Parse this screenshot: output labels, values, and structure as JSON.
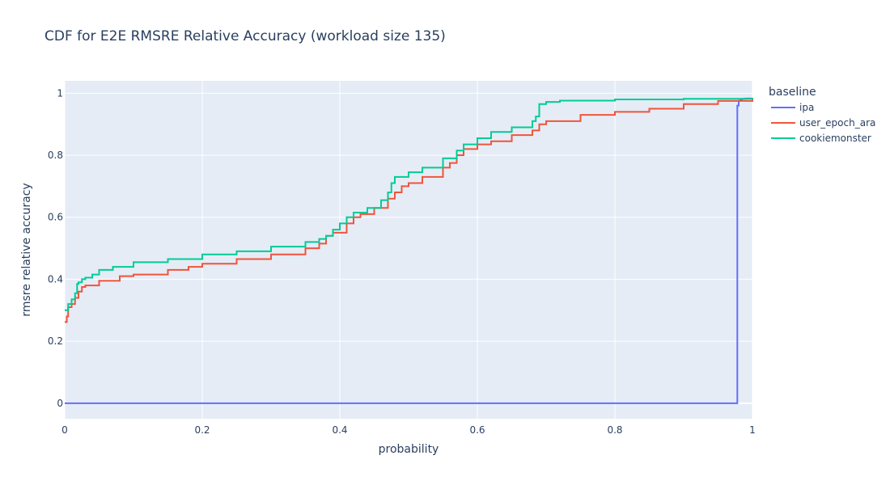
{
  "chart_data": {
    "type": "line",
    "title": "CDF for E2E RMSRE Relative Accuracy (workload size 135)",
    "xlabel": "probability",
    "ylabel": "rmsre relative accuracy",
    "xlim": [
      0,
      1
    ],
    "ylim": [
      -0.05,
      1.04
    ],
    "x_ticks": [
      0,
      0.2,
      0.4,
      0.6,
      0.8,
      1
    ],
    "x_tick_labels": [
      "0",
      "0.2",
      "0.4",
      "0.6",
      "0.8",
      "1"
    ],
    "y_ticks": [
      0,
      0.2,
      0.4,
      0.6,
      0.8,
      1
    ],
    "y_tick_labels": [
      "0",
      "0.2",
      "0.4",
      "0.6",
      "0.8",
      "1"
    ],
    "grid": true,
    "legend": {
      "title": "baseline",
      "placement": "right"
    },
    "series": [
      {
        "name": "ipa",
        "color": "#636efa",
        "x": [
          0,
          0.978,
          0.978,
          0.98,
          0.982,
          0.985,
          0.99,
          1.0
        ],
        "y": [
          0,
          0,
          0.96,
          0.975,
          0.98,
          0.982,
          0.983,
          0.985
        ]
      },
      {
        "name": "user_epoch_ara",
        "color": "#ef553b",
        "x": [
          0,
          0.003,
          0.005,
          0.01,
          0.015,
          0.02,
          0.025,
          0.03,
          0.05,
          0.08,
          0.1,
          0.15,
          0.18,
          0.2,
          0.25,
          0.3,
          0.35,
          0.37,
          0.38,
          0.39,
          0.41,
          0.42,
          0.43,
          0.45,
          0.47,
          0.48,
          0.49,
          0.5,
          0.52,
          0.55,
          0.56,
          0.57,
          0.58,
          0.6,
          0.62,
          0.65,
          0.68,
          0.69,
          0.7,
          0.75,
          0.8,
          0.85,
          0.9,
          0.95,
          1.0
        ],
        "y": [
          0.262,
          0.28,
          0.31,
          0.32,
          0.34,
          0.36,
          0.375,
          0.38,
          0.395,
          0.41,
          0.415,
          0.43,
          0.44,
          0.45,
          0.465,
          0.48,
          0.5,
          0.515,
          0.54,
          0.55,
          0.58,
          0.6,
          0.61,
          0.63,
          0.66,
          0.68,
          0.7,
          0.71,
          0.73,
          0.76,
          0.775,
          0.8,
          0.82,
          0.835,
          0.845,
          0.865,
          0.88,
          0.9,
          0.91,
          0.93,
          0.94,
          0.95,
          0.965,
          0.975,
          0.985
        ]
      },
      {
        "name": "cookiemonster",
        "color": "#00cc96",
        "x": [
          0,
          0.005,
          0.01,
          0.015,
          0.018,
          0.02,
          0.025,
          0.03,
          0.04,
          0.05,
          0.07,
          0.1,
          0.15,
          0.2,
          0.25,
          0.3,
          0.35,
          0.37,
          0.38,
          0.39,
          0.4,
          0.41,
          0.42,
          0.44,
          0.46,
          0.47,
          0.475,
          0.48,
          0.5,
          0.52,
          0.55,
          0.57,
          0.58,
          0.6,
          0.62,
          0.65,
          0.68,
          0.685,
          0.69,
          0.7,
          0.72,
          0.8,
          0.9,
          1.0
        ],
        "y": [
          0.3,
          0.32,
          0.335,
          0.355,
          0.385,
          0.39,
          0.4,
          0.405,
          0.415,
          0.43,
          0.44,
          0.455,
          0.465,
          0.48,
          0.49,
          0.505,
          0.52,
          0.53,
          0.54,
          0.56,
          0.58,
          0.6,
          0.615,
          0.63,
          0.655,
          0.68,
          0.71,
          0.73,
          0.745,
          0.76,
          0.79,
          0.815,
          0.835,
          0.855,
          0.875,
          0.89,
          0.91,
          0.925,
          0.965,
          0.972,
          0.976,
          0.98,
          0.982,
          0.985
        ]
      }
    ]
  }
}
